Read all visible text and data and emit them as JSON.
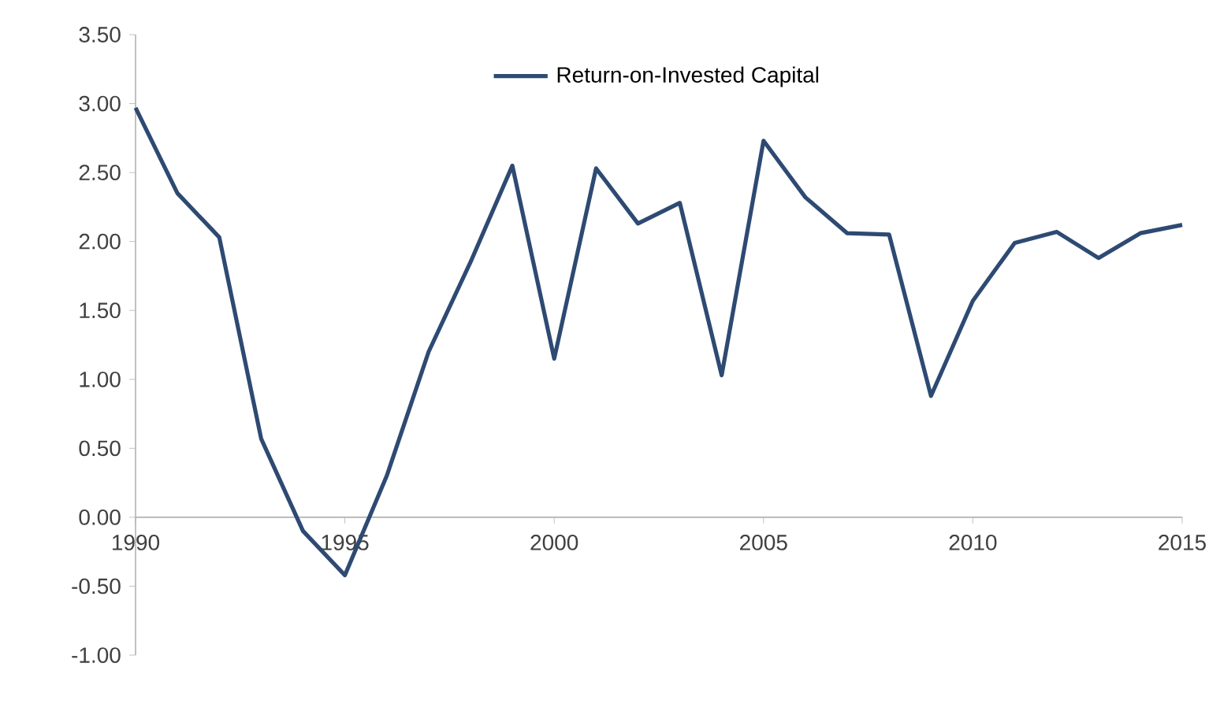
{
  "chart_data": {
    "type": "line",
    "x": [
      1990,
      1991,
      1992,
      1993,
      1994,
      1995,
      1996,
      1997,
      1998,
      1999,
      2000,
      2001,
      2002,
      2003,
      2004,
      2005,
      2006,
      2007,
      2008,
      2009,
      2010,
      2011,
      2012,
      2013,
      2014,
      2015
    ],
    "series": [
      {
        "name": "Return-on-Invested Capital",
        "color": "#2e4a73",
        "values": [
          2.97,
          2.35,
          2.03,
          0.57,
          -0.1,
          -0.42,
          0.3,
          1.2,
          1.85,
          2.55,
          1.15,
          2.53,
          2.13,
          2.28,
          1.03,
          2.73,
          2.32,
          2.06,
          2.05,
          0.88,
          1.57,
          1.99,
          2.07,
          1.88,
          2.06,
          2.12
        ]
      }
    ],
    "xlim": [
      1990,
      2015
    ],
    "xticks": [
      1990,
      1995,
      2000,
      2005,
      2010,
      2015
    ],
    "ylim": [
      -1.0,
      3.5
    ],
    "yticks": [
      {
        "value": -1.0,
        "label": "-1.00"
      },
      {
        "value": -0.5,
        "label": "-0.50"
      },
      {
        "value": 0,
        "label": "0.00"
      },
      {
        "value": 0.5,
        "label": "0.50"
      },
      {
        "value": 1.0,
        "label": "1.00"
      },
      {
        "value": 1.5,
        "label": "1.50"
      },
      {
        "value": 2.0,
        "label": "2.00"
      },
      {
        "value": 2.5,
        "label": "2.50"
      },
      {
        "value": 3.0,
        "label": "3.00"
      },
      {
        "value": 3.5,
        "label": "3.50"
      }
    ],
    "legend": "top",
    "grid": false,
    "marker": "none",
    "line_style": "solid"
  }
}
